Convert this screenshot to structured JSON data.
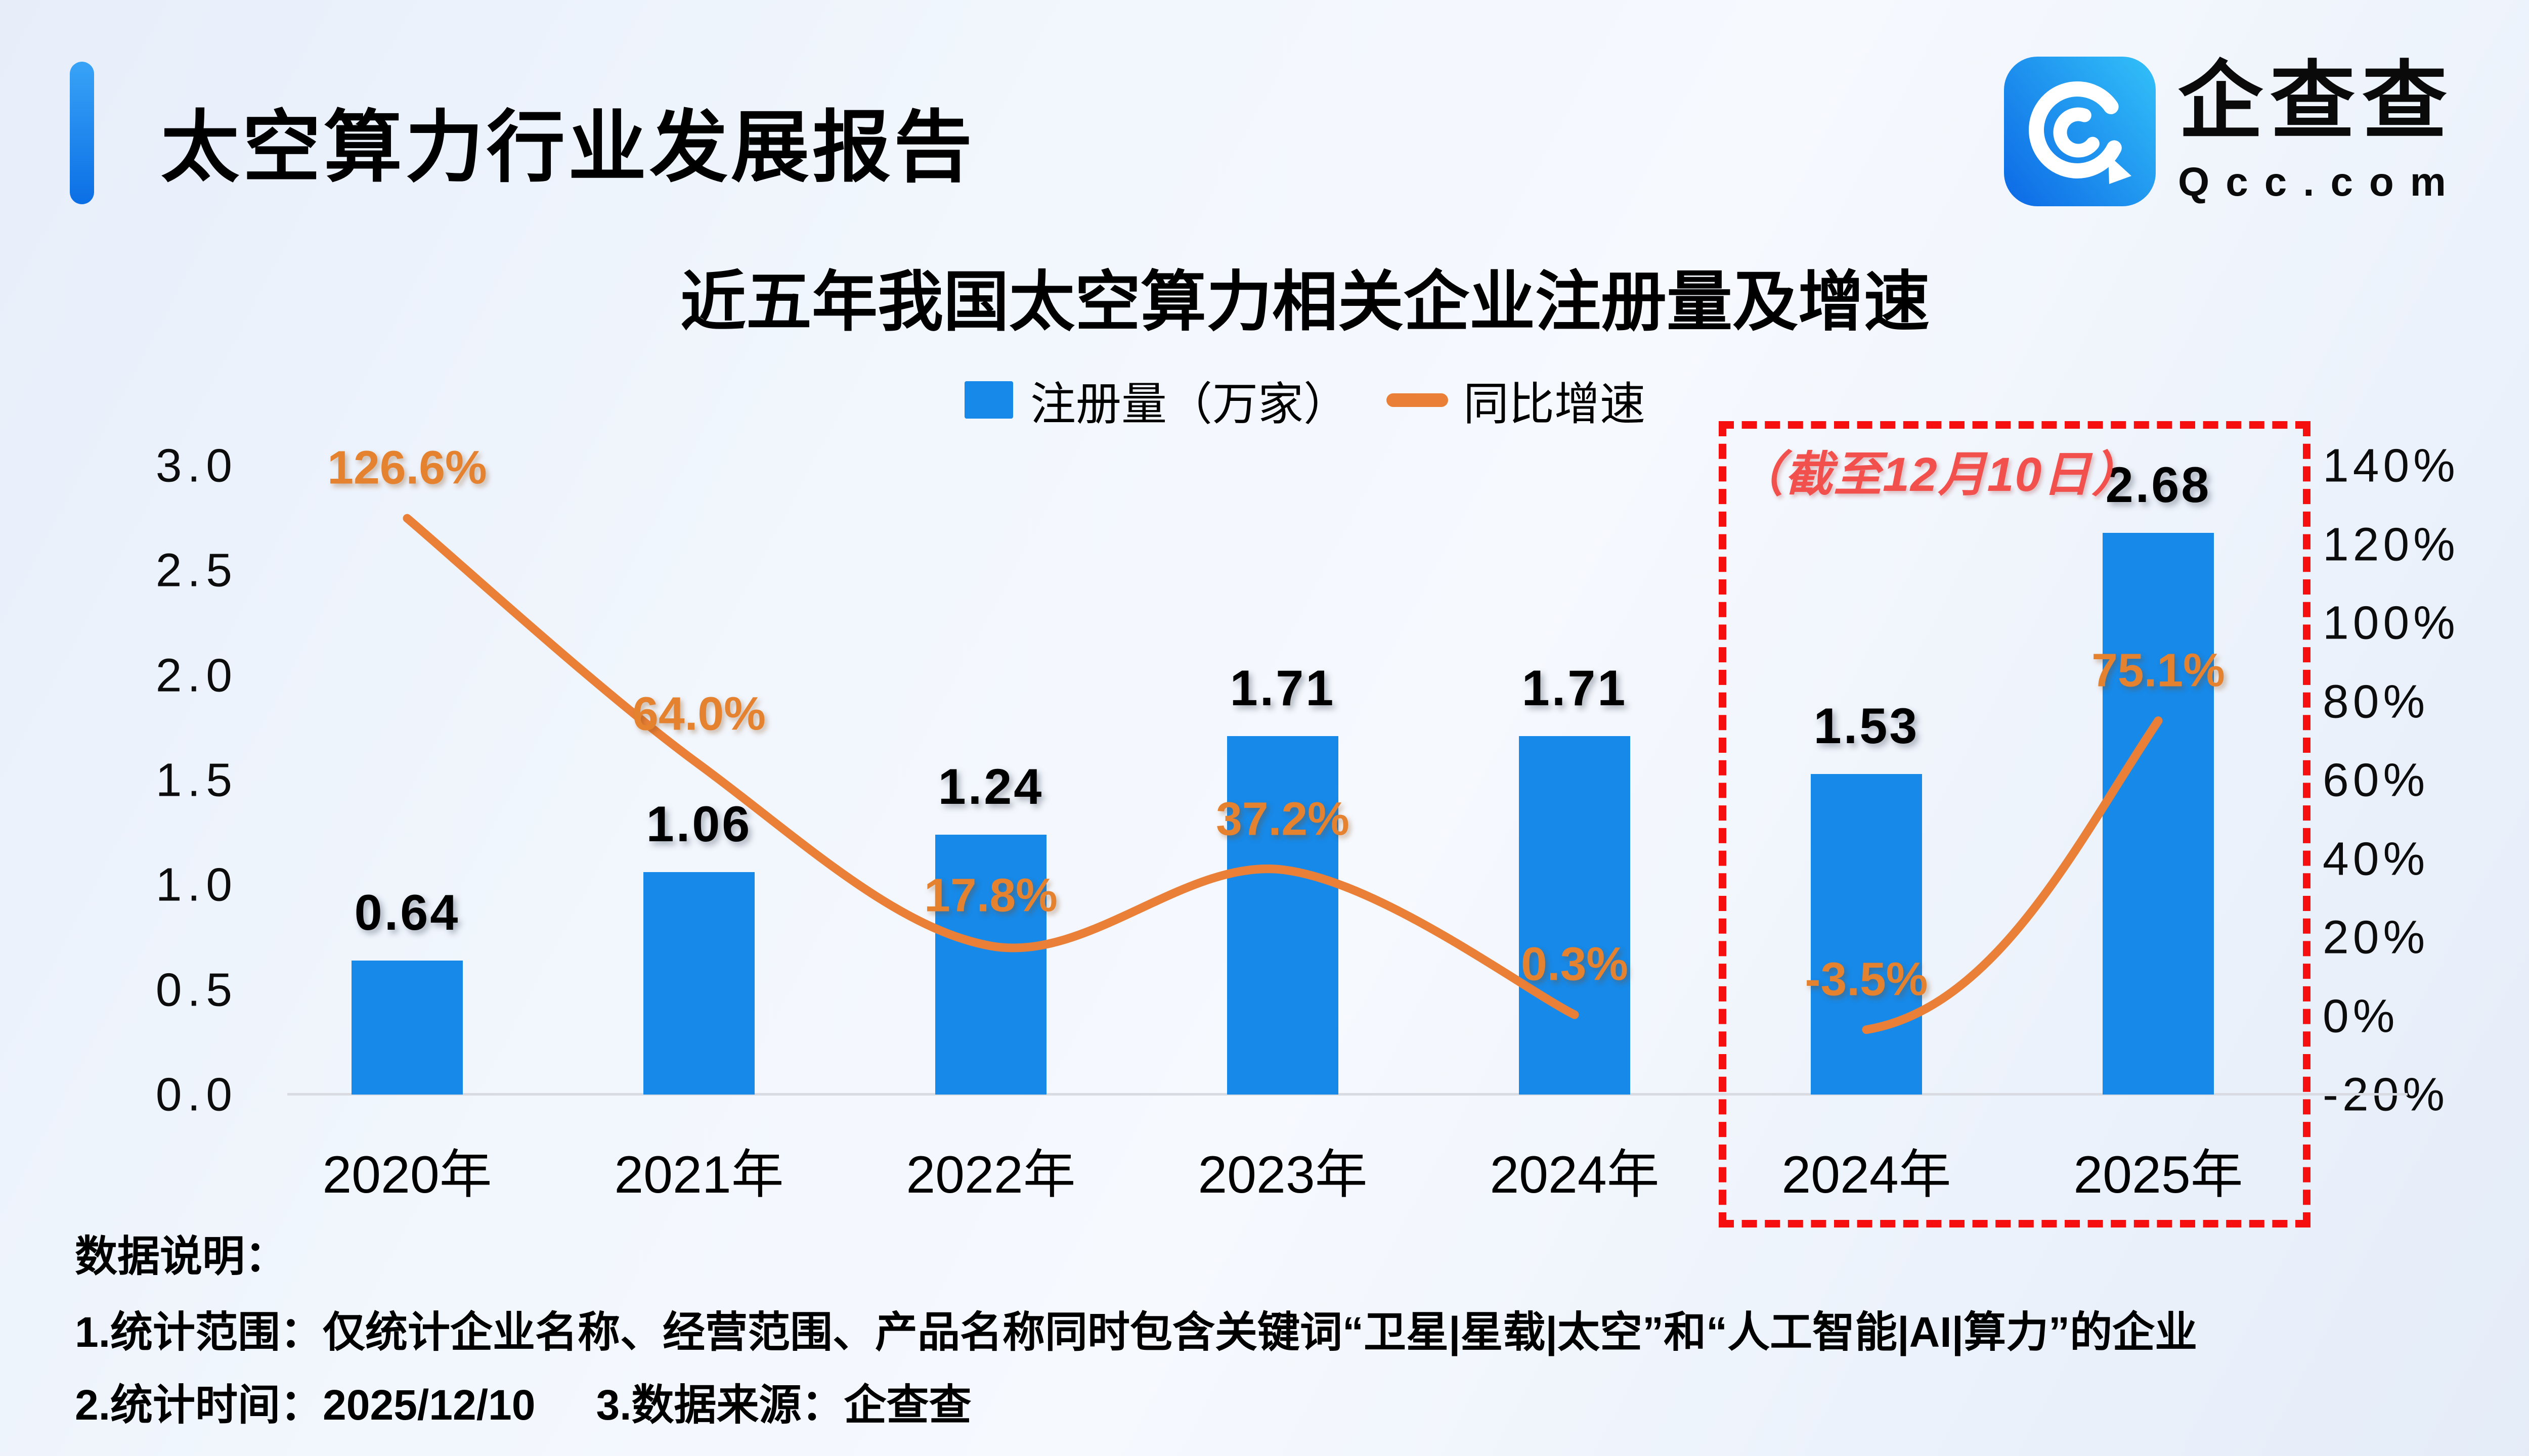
{
  "page": {
    "report_title": "太空算力行业发展报告",
    "logo": {
      "brand": "企查查",
      "domain": "Qcc.com"
    },
    "notes": {
      "heading": "数据说明：",
      "line1": "1.统计范围：仅统计企业名称、经营范围、产品名称同时包含关键词“卫星|星载|太空”和“人工智能|AI|算力”的企业",
      "line2a": "2.统计时间：2025/12/10",
      "line2b": "3.数据来源：企查查"
    }
  },
  "chart_data": {
    "type": "bar+line",
    "title": "近五年我国太空算力相关企业注册量及增速",
    "categories": [
      "2020年",
      "2021年",
      "2022年",
      "2023年",
      "2024年",
      "2024年",
      "2025年"
    ],
    "series": [
      {
        "name": "注册量（万家）",
        "type": "bar",
        "color": "#1789e8",
        "values": [
          0.64,
          1.06,
          1.24,
          1.71,
          1.71,
          1.53,
          2.68
        ],
        "labels": [
          "0.64",
          "1.06",
          "1.24",
          "1.71",
          "1.71",
          "1.53",
          "2.68"
        ]
      },
      {
        "name": "同比增速",
        "type": "line",
        "color": "#ea8038",
        "values_pct": [
          126.6,
          64.0,
          17.8,
          37.2,
          0.3,
          -3.5,
          75.1
        ],
        "labels": [
          "126.6%",
          "64.0%",
          "17.8%",
          "37.2%",
          "0.3%",
          "-3.5%",
          "75.1%"
        ],
        "segments": [
          [
            0,
            4
          ],
          [
            5,
            6
          ]
        ]
      }
    ],
    "legend": [
      {
        "label": "注册量（万家）",
        "swatch": "bar",
        "color": "#1789e8"
      },
      {
        "label": "同比增速",
        "swatch": "line",
        "color": "#ea8038"
      }
    ],
    "left_axis": {
      "min": 0,
      "max": 3,
      "ticks": [
        "3.0",
        "2.5",
        "2.0",
        "1.5",
        "1.0",
        "0.5",
        "0.0"
      ]
    },
    "right_axis": {
      "min": -20,
      "max": 140,
      "ticks": [
        "140%",
        "120%",
        "100%",
        "80%",
        "60%",
        "40%",
        "20%",
        "0%",
        "-20%"
      ]
    },
    "annotation_box": {
      "label": "（截至12月10日）",
      "applies_to": [
        "2024年",
        "2025年"
      ],
      "border_color": "#f50f0f",
      "label_color": "#f1504d"
    },
    "grid": false,
    "legend_position": "top"
  }
}
